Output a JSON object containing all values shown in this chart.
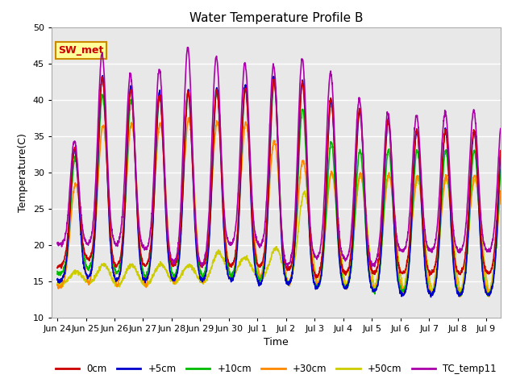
{
  "title": "Water Temperature Profile B",
  "xlabel": "Time",
  "ylabel": "Temperature(C)",
  "ylim": [
    10,
    50
  ],
  "background_color": "#e8e8e8",
  "annotation_text": "SW_met",
  "annotation_bg": "#ffff99",
  "annotation_border": "#cc8800",
  "annotation_text_color": "#cc0000",
  "tick_labels": [
    "Jun 24",
    "Jun 25",
    "Jun 26",
    "Jun 27",
    "Jun 28",
    "Jun 29",
    "Jun 30",
    "Jul 1",
    "Jul 2",
    "Jul 3",
    "Jul 4",
    "Jul 5",
    "Jul 6",
    "Jul 7",
    "Jul 8",
    "Jul 9"
  ],
  "tick_positions": [
    0,
    1,
    2,
    3,
    4,
    5,
    6,
    7,
    8,
    9,
    10,
    11,
    12,
    13,
    14,
    15
  ],
  "series": {
    "0cm": {
      "color": "#cc0000",
      "lw": 1.2
    },
    "+5cm": {
      "color": "#0000cc",
      "lw": 1.2
    },
    "+10cm": {
      "color": "#00bb00",
      "lw": 1.2
    },
    "+30cm": {
      "color": "#ff8800",
      "lw": 1.2
    },
    "+50cm": {
      "color": "#cccc00",
      "lw": 1.2
    },
    "TC_temp11": {
      "color": "#aa00aa",
      "lw": 1.2
    }
  },
  "day_peaks_tc": [
    21.0,
    44.0,
    48.0,
    40.0,
    47.5,
    47.0,
    45.0,
    45.0,
    44.5,
    46.5,
    41.5,
    39.0,
    37.5,
    38.0,
    38.5,
    38.5,
    37.0
  ],
  "day_peaks_0cm": [
    19.0,
    43.0,
    43.0,
    40.0,
    41.0,
    41.0,
    41.5,
    41.5,
    43.5,
    41.5,
    39.0,
    38.5,
    36.0,
    35.5,
    36.0,
    35.5,
    35.0
  ],
  "day_peaks_5cm": [
    19.0,
    43.0,
    43.5,
    40.5,
    41.5,
    41.0,
    42.0,
    42.0,
    44.0,
    41.5,
    38.5,
    38.5,
    36.0,
    35.5,
    36.0,
    35.5,
    35.0
  ],
  "day_peaks_10cm": [
    17.0,
    41.5,
    40.0,
    40.0,
    41.0,
    41.0,
    41.5,
    41.5,
    43.0,
    35.5,
    33.0,
    33.0,
    33.0,
    33.0,
    33.0,
    33.0,
    33.0
  ],
  "day_peaks_30cm": [
    17.0,
    35.5,
    37.0,
    36.5,
    37.0,
    37.5,
    36.5,
    37.0,
    32.5,
    31.0,
    29.5,
    30.0,
    29.5,
    29.5,
    29.5,
    29.5,
    29.0
  ],
  "day_peaks_50cm": [
    15.0,
    17.0,
    17.5,
    17.0,
    17.5,
    17.0,
    20.0,
    17.0,
    21.0,
    31.0,
    29.0,
    30.0,
    29.0,
    29.0,
    29.0,
    29.0,
    29.0
  ],
  "day_mins_tc": [
    20.0,
    20.0,
    20.0,
    19.5,
    17.5,
    17.0,
    20.0,
    20.0,
    17.0,
    18.0,
    18.0,
    17.0,
    19.0,
    19.0,
    19.0,
    19.0,
    19.0
  ],
  "day_mins_0cm": [
    17.0,
    18.0,
    17.0,
    17.0,
    17.0,
    17.0,
    17.0,
    17.0,
    16.5,
    15.5,
    16.0,
    16.0,
    16.0,
    16.0,
    16.0,
    16.0,
    16.0
  ],
  "day_mins_5cm": [
    15.0,
    15.5,
    15.0,
    15.0,
    15.0,
    15.0,
    15.0,
    14.5,
    14.5,
    14.0,
    14.0,
    13.5,
    13.0,
    13.0,
    13.0,
    13.0,
    13.0
  ],
  "day_mins_10cm": [
    16.0,
    16.5,
    16.0,
    15.5,
    15.5,
    15.5,
    15.5,
    15.0,
    14.5,
    14.0,
    14.0,
    13.5,
    13.5,
    13.0,
    13.0,
    13.0,
    13.0
  ],
  "day_mins_30cm": [
    14.0,
    14.0,
    13.5,
    13.5,
    14.0,
    14.0,
    14.5,
    15.0,
    14.0,
    14.0,
    13.5,
    13.0,
    13.0,
    12.5,
    12.5,
    12.5,
    12.5
  ],
  "day_mins_50cm": [
    14.5,
    14.5,
    14.0,
    14.0,
    14.5,
    14.5,
    15.0,
    15.5,
    14.0,
    13.0,
    13.0,
    12.5,
    12.5,
    12.0,
    12.0,
    12.0,
    12.0
  ]
}
